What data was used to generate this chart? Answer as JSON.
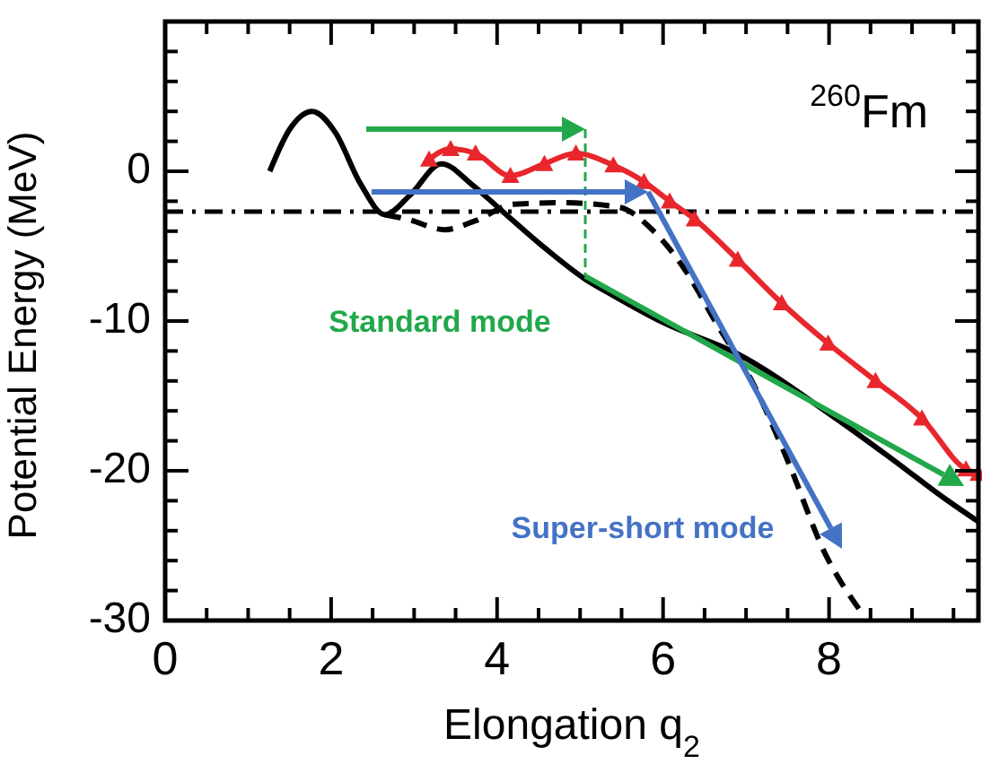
{
  "chart_data": {
    "type": "line",
    "xlabel": "Elongation $_{}$q$_{2}$",
    "ylabel": "Potential Energy (MeV)",
    "xlim": [
      0,
      9.8
    ],
    "ylim": [
      -30,
      10
    ],
    "xticks": [
      0,
      {
        "value": 0.5,
        "label": null
      },
      {
        "value": 1,
        "label": null
      },
      {
        "value": 1.5,
        "label": null
      },
      2,
      {
        "value": 2.5,
        "label": null
      },
      {
        "value": 3,
        "label": null
      },
      {
        "value": 3.5,
        "label": null
      },
      4,
      {
        "value": 4.5,
        "label": null
      },
      {
        "value": 5,
        "label": null
      },
      {
        "value": 5.5,
        "label": null
      },
      6,
      {
        "value": 6.5,
        "label": null
      },
      {
        "value": 7,
        "label": null
      },
      {
        "value": 7.5,
        "label": null
      },
      8,
      {
        "value": 8.5,
        "label": null
      },
      {
        "value": 9,
        "label": null
      },
      {
        "value": 9.5,
        "label": null
      }
    ],
    "yticks": [
      -30,
      {
        "value": -28,
        "label": null
      },
      {
        "value": -26,
        "label": null
      },
      {
        "value": -24,
        "label": null
      },
      {
        "value": -22,
        "label": null
      },
      -20,
      {
        "value": -18,
        "label": null
      },
      {
        "value": -16,
        "label": null
      },
      {
        "value": -14,
        "label": null
      },
      {
        "value": -12,
        "label": null
      },
      -10,
      {
        "value": -8,
        "label": null
      },
      {
        "value": -6,
        "label": null
      },
      {
        "value": -4,
        "label": null
      },
      {
        "value": -2,
        "label": null
      },
      0,
      {
        "value": 2,
        "label": null
      },
      {
        "value": 4,
        "label": null
      },
      {
        "value": 6,
        "label": null
      },
      {
        "value": 8,
        "label": null
      }
    ],
    "grid": false,
    "series": [
      {
        "color": "#000000",
        "line_style": "solid",
        "marker": "none",
        "x": [
          1.26,
          1.5,
          1.77,
          2.05,
          2.35,
          2.65,
          2.95,
          3.33,
          3.7,
          4.05,
          4.57,
          5.06,
          5.4,
          6,
          6.9,
          8.03,
          8.78,
          9.38,
          9.8
        ],
        "values": [
          0,
          2.8,
          4,
          2.6,
          -0.8,
          -2.9,
          -1.6,
          0.5,
          -0.9,
          -2.6,
          -5.1,
          -7.2,
          -8.3,
          -10.1,
          -12.2,
          -16.3,
          -19.3,
          -21.8,
          -23.4
        ]
      },
      {
        "color": "#000000",
        "line_style": "dashed",
        "marker": "none",
        "x": [
          2.65,
          2.92,
          3.37,
          3.74,
          4.2,
          4.8,
          5.47,
          5.85,
          6.23,
          6.68,
          7.05,
          7.5,
          7.95,
          8.37
        ],
        "values": [
          -2.9,
          -3.2,
          -3.9,
          -3.3,
          -2.2,
          -2.1,
          -2.4,
          -3.8,
          -6.3,
          -10.5,
          -13.8,
          -19.3,
          -25.5,
          -29.3
        ]
      },
      {
        "color": "#e8262b",
        "line_style": "solid",
        "marker": "triangle",
        "x": [
          3.18,
          3.44,
          3.74,
          4.16,
          4.57,
          4.95,
          5.4,
          5.77,
          6.08,
          6.38,
          6.9,
          7.43,
          7.99,
          8.56,
          9.12,
          9.65,
          9.8
        ],
        "values": [
          0.8,
          1.5,
          1.2,
          -0.3,
          0.5,
          1.2,
          0.4,
          -0.7,
          -2,
          -3.2,
          -5.9,
          -8.8,
          -11.5,
          -14,
          -16.5,
          -19.9,
          -20.2
        ]
      }
    ],
    "ref_lines": [
      {
        "axis": "y",
        "value": -2.7,
        "color": "#000000",
        "line_style": "dashdot"
      }
    ],
    "annotations": [
      "$^{260}$Fm",
      "Standard mode",
      "Super-short mode"
    ]
  }
}
